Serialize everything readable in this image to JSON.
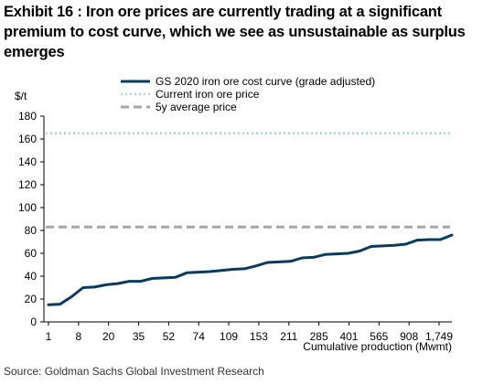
{
  "header": {
    "title": "Exhibit 16 : Iron ore prices are currently trading at a significant premium to cost curve, which we see as unsustainable as surplus emerges"
  },
  "footer": {
    "source": "Source: Goldman Sachs Global Investment Research"
  },
  "chart_data": {
    "type": "line",
    "title": "",
    "ylabel": "$/t",
    "xlabel": "Cumulative production (Mwmt)",
    "ylim": [
      0,
      180
    ],
    "yticks": [
      0,
      20,
      40,
      60,
      80,
      100,
      120,
      140,
      160,
      180
    ],
    "xtick_labels": [
      "1",
      "8",
      "20",
      "35",
      "52",
      "74",
      "109",
      "153",
      "211",
      "285",
      "401",
      "565",
      "908",
      "1,749"
    ],
    "grid": false,
    "legend_position": "top",
    "series": [
      {
        "name": "GS 2020 iron ore cost curve (grade adjusted)",
        "style": "solid",
        "color": "#0b3b5c",
        "values": [
          15,
          15.5,
          22,
          30,
          30.5,
          32.5,
          33.5,
          35.5,
          35.5,
          38,
          38.5,
          39,
          43,
          43.5,
          44,
          45,
          46,
          46.5,
          49,
          52,
          52.5,
          53,
          56,
          56.5,
          59,
          59.5,
          60,
          62,
          66,
          66.5,
          67,
          68,
          71.5,
          72,
          72,
          76
        ]
      },
      {
        "name": "Current iron ore price",
        "style": "dotted",
        "color": "#a9d3f0",
        "constant": 165
      },
      {
        "name": "5y average price",
        "style": "dashed",
        "color": "#a6a6a6",
        "constant": 83
      }
    ]
  }
}
